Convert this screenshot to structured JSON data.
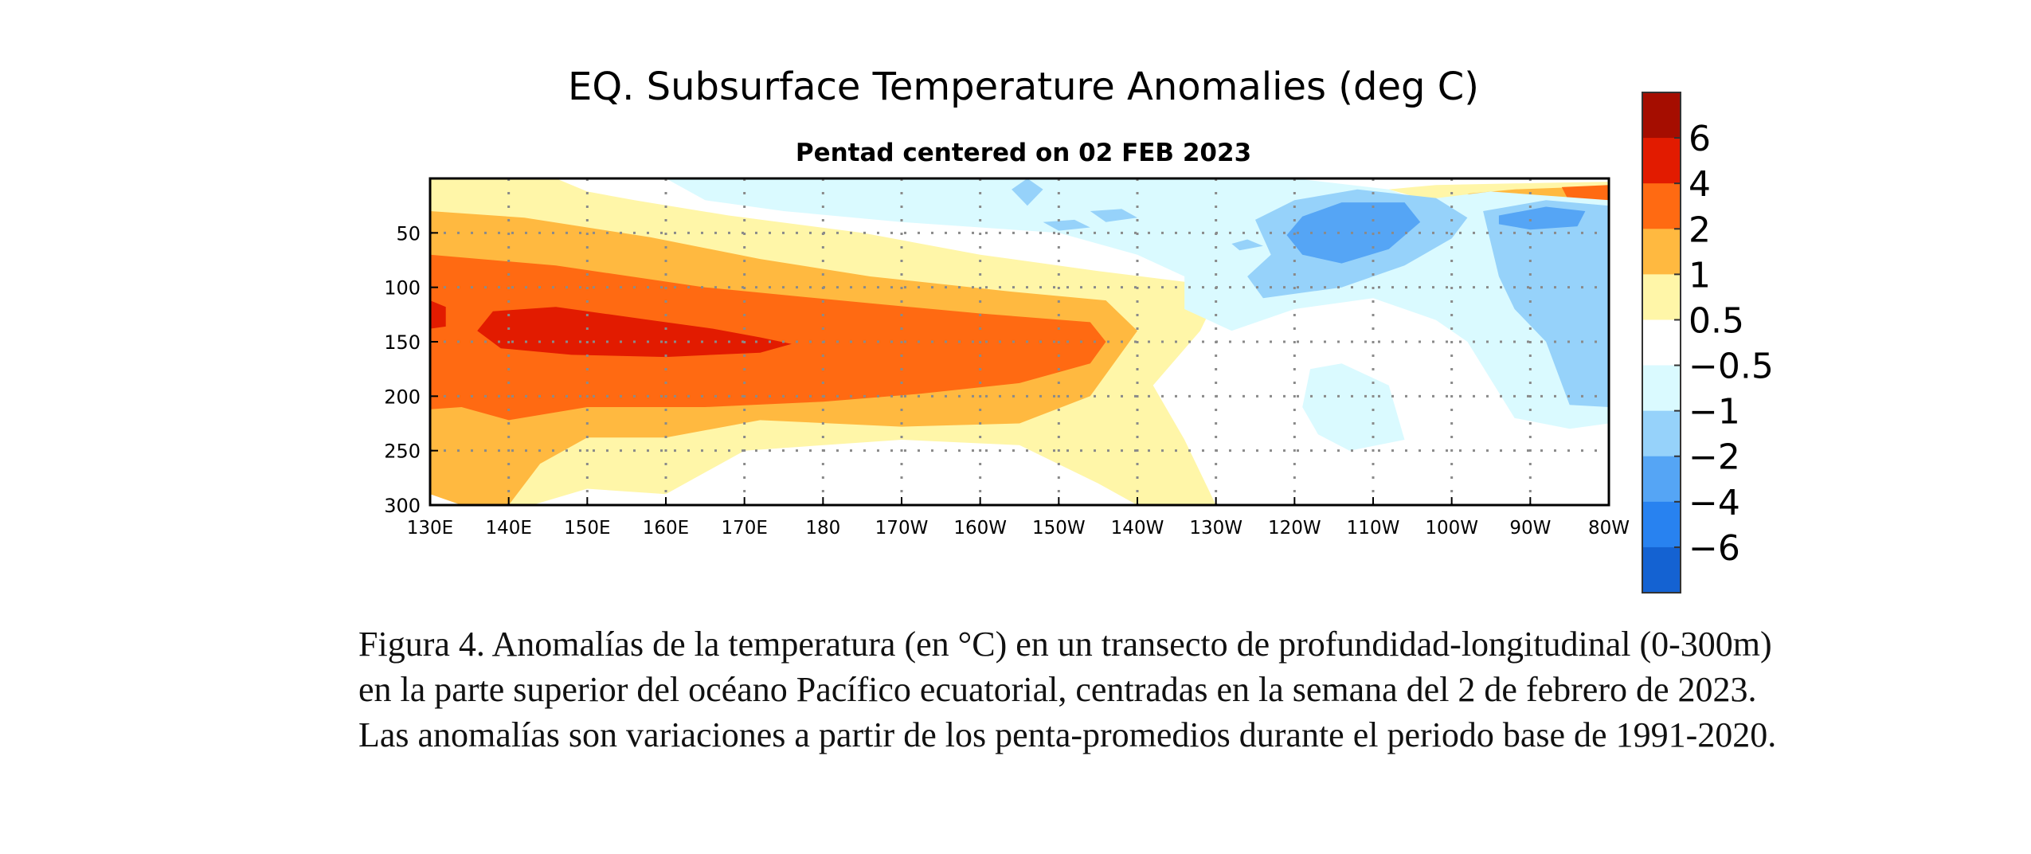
{
  "chart_data": {
    "type": "heatmap",
    "title": "EQ. Subsurface Temperature Anomalies (deg C)",
    "subtitle": "Pentad centered on 02 FEB 2023",
    "xlabel": "",
    "ylabel": "",
    "x_ticks": [
      "130E",
      "140E",
      "150E",
      "160E",
      "170E",
      "180",
      "170W",
      "160W",
      "150W",
      "140W",
      "130W",
      "120W",
      "110W",
      "100W",
      "90W",
      "80W"
    ],
    "x_range_deg_east": [
      130,
      280
    ],
    "y_ticks": [
      50,
      100,
      150,
      200,
      250,
      300
    ],
    "y_range_m": [
      0,
      300
    ],
    "y_reversed": true,
    "grid": "dotted",
    "legend_placement": "right",
    "colorbar": {
      "labels": [
        "6",
        "4",
        "2",
        "1",
        "0.5",
        "−0.5",
        "−1",
        "−2",
        "−4",
        "−6"
      ],
      "bins": [
        {
          "range": "> 6",
          "color": "#a50d00"
        },
        {
          "range": "4 to 6",
          "color": "#e21b00"
        },
        {
          "range": "2 to 4",
          "color": "#ff6a12"
        },
        {
          "range": "1 to 2",
          "color": "#ffb940"
        },
        {
          "range": "0.5 to 1",
          "color": "#fff6a8"
        },
        {
          "range": "-0.5 to 0.5",
          "color": "#ffffff"
        },
        {
          "range": "-1 to -0.5",
          "color": "#dafaff"
        },
        {
          "range": "-2 to -1",
          "color": "#96d2fa"
        },
        {
          "range": "-4 to -2",
          "color": "#55a5f5"
        },
        {
          "range": "-6 to -4",
          "color": "#2882f0"
        },
        {
          "range": "< -6",
          "color": "#1462d2"
        }
      ]
    },
    "regions": [
      {
        "level": "0.5 to 1",
        "outline": [
          [
            130,
            0
          ],
          [
            146,
            0
          ],
          [
            150,
            12
          ],
          [
            156,
            20
          ],
          [
            168,
            34
          ],
          [
            185,
            50
          ],
          [
            200,
            70
          ],
          [
            215,
            85
          ],
          [
            226,
            95
          ],
          [
            230,
            110
          ],
          [
            228,
            140
          ],
          [
            222,
            190
          ],
          [
            226,
            240
          ],
          [
            230,
            300
          ],
          [
            220,
            300
          ],
          [
            215,
            280
          ],
          [
            205,
            245
          ],
          [
            190,
            240
          ],
          [
            170,
            250
          ],
          [
            160,
            290
          ],
          [
            150,
            285
          ],
          [
            143,
            300
          ],
          [
            135,
            300
          ],
          [
            130,
            280
          ]
        ]
      },
      {
        "level": "1 to 2",
        "outline": [
          [
            130,
            30
          ],
          [
            142,
            36
          ],
          [
            158,
            54
          ],
          [
            172,
            74
          ],
          [
            186,
            90
          ],
          [
            204,
            104
          ],
          [
            216,
            112
          ],
          [
            220,
            140
          ],
          [
            214,
            200
          ],
          [
            205,
            225
          ],
          [
            190,
            228
          ],
          [
            172,
            222
          ],
          [
            160,
            238
          ],
          [
            150,
            238
          ],
          [
            144,
            262
          ],
          [
            140,
            300
          ],
          [
            134,
            300
          ],
          [
            130,
            290
          ]
        ]
      },
      {
        "level": "2 to 4",
        "outline": [
          [
            130,
            70
          ],
          [
            146,
            80
          ],
          [
            165,
            100
          ],
          [
            185,
            114
          ],
          [
            200,
            124
          ],
          [
            214,
            132
          ],
          [
            216,
            150
          ],
          [
            214,
            170
          ],
          [
            205,
            188
          ],
          [
            192,
            198
          ],
          [
            180,
            205
          ],
          [
            165,
            210
          ],
          [
            150,
            210
          ],
          [
            140,
            222
          ],
          [
            134,
            210
          ],
          [
            130,
            212
          ]
        ]
      },
      {
        "level": "4 to 6",
        "outline": [
          [
            138,
            122
          ],
          [
            146,
            118
          ],
          [
            158,
            130
          ],
          [
            166,
            138
          ],
          [
            172,
            146
          ],
          [
            176,
            152
          ],
          [
            172,
            160
          ],
          [
            160,
            164
          ],
          [
            148,
            162
          ],
          [
            139,
            156
          ],
          [
            136,
            140
          ]
        ]
      },
      {
        "level": "4 to 6",
        "outline": [
          [
            130,
            112
          ],
          [
            132,
            118
          ],
          [
            132,
            136
          ],
          [
            130,
            138
          ]
        ]
      },
      {
        "level": "0.5 to 1",
        "outline": [
          [
            252,
            10
          ],
          [
            258,
            6
          ],
          [
            272,
            4
          ],
          [
            280,
            3
          ],
          [
            280,
            18
          ],
          [
            270,
            20
          ],
          [
            256,
            18
          ]
        ]
      },
      {
        "level": "1 to 2",
        "outline": [
          [
            262,
            14
          ],
          [
            268,
            10
          ],
          [
            276,
            8
          ],
          [
            280,
            8
          ],
          [
            280,
            18
          ],
          [
            270,
            18
          ],
          [
            264,
            18
          ]
        ]
      },
      {
        "level": "2 to 4",
        "outline": [
          [
            274,
            8
          ],
          [
            280,
            6
          ],
          [
            280,
            22
          ],
          [
            275,
            22
          ]
        ]
      },
      {
        "level": "-1 to -0.5",
        "outline": [
          [
            160,
            0
          ],
          [
            240,
            0
          ],
          [
            252,
            10
          ],
          [
            256,
            20
          ],
          [
            265,
            12
          ],
          [
            280,
            20
          ],
          [
            280,
            225
          ],
          [
            275,
            230
          ],
          [
            268,
            220
          ],
          [
            262,
            150
          ],
          [
            258,
            130
          ],
          [
            250,
            110
          ],
          [
            240,
            120
          ],
          [
            232,
            140
          ],
          [
            226,
            120
          ],
          [
            226,
            90
          ],
          [
            220,
            70
          ],
          [
            210,
            50
          ],
          [
            190,
            40
          ],
          [
            175,
            30
          ],
          [
            165,
            20
          ]
        ]
      },
      {
        "level": "-1 to -0.5",
        "outline": [
          [
            242,
            175
          ],
          [
            246,
            170
          ],
          [
            252,
            190
          ],
          [
            254,
            240
          ],
          [
            247,
            250
          ],
          [
            243,
            235
          ],
          [
            241,
            210
          ]
        ]
      },
      {
        "level": "-2 to -1",
        "outline": [
          [
            235,
            38
          ],
          [
            240,
            20
          ],
          [
            248,
            10
          ],
          [
            258,
            18
          ],
          [
            262,
            36
          ],
          [
            260,
            55
          ],
          [
            254,
            80
          ],
          [
            246,
            100
          ],
          [
            236,
            110
          ],
          [
            234,
            90
          ],
          [
            237,
            70
          ]
        ]
      },
      {
        "level": "-2 to -1",
        "outline": [
          [
            264,
            30
          ],
          [
            272,
            20
          ],
          [
            280,
            25
          ],
          [
            280,
            210
          ],
          [
            275,
            208
          ],
          [
            272,
            150
          ],
          [
            268,
            120
          ],
          [
            266,
            90
          ],
          [
            265,
            60
          ]
        ]
      },
      {
        "level": "-2 to -1",
        "outline": [
          [
            206,
            0
          ],
          [
            208,
            10
          ],
          [
            206,
            25
          ],
          [
            204,
            10
          ]
        ]
      },
      {
        "level": "-2 to -1",
        "outline": [
          [
            208,
            40
          ],
          [
            212,
            38
          ],
          [
            214,
            45
          ],
          [
            210,
            48
          ]
        ]
      },
      {
        "level": "-2 to -1",
        "outline": [
          [
            214,
            30
          ],
          [
            218,
            28
          ],
          [
            220,
            36
          ],
          [
            216,
            40
          ]
        ]
      },
      {
        "level": "-2 to -1",
        "outline": [
          [
            232,
            60
          ],
          [
            234,
            56
          ],
          [
            236,
            62
          ],
          [
            233,
            66
          ]
        ]
      },
      {
        "level": "-4 to -2",
        "outline": [
          [
            241,
            35
          ],
          [
            246,
            22
          ],
          [
            254,
            22
          ],
          [
            256,
            40
          ],
          [
            252,
            65
          ],
          [
            246,
            78
          ],
          [
            241,
            70
          ],
          [
            239,
            52
          ]
        ]
      },
      {
        "level": "-4 to -2",
        "outline": [
          [
            266,
            34
          ],
          [
            272,
            26
          ],
          [
            277,
            30
          ],
          [
            276,
            44
          ],
          [
            270,
            47
          ],
          [
            266,
            42
          ]
        ]
      }
    ]
  },
  "caption": "Figura 4. Anomalías de la temperatura (en °C) en un transecto de profundidad-longitudinal (0-300m) en la parte superior del océano Pacífico ecuatorial, centradas en la semana del 2 de febrero de 2023. Las anomalías son variaciones a partir de los penta-promedios durante el periodo base de 1991-2020."
}
